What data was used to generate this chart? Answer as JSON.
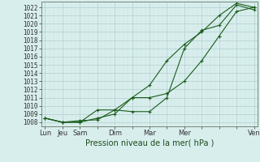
{
  "xlabel": "Pression niveau de la mer( hPa )",
  "ylim": [
    1007.5,
    1022.7
  ],
  "yticks": [
    1008,
    1009,
    1010,
    1011,
    1012,
    1013,
    1014,
    1015,
    1016,
    1017,
    1018,
    1019,
    1020,
    1021,
    1022
  ],
  "bg_color": "#d8eeed",
  "grid_major_color": "#b0cece",
  "grid_minor_color": "#c8e0e0",
  "line_color": "#1a5c1a",
  "series1_x": [
    0,
    1,
    2,
    3,
    4,
    5,
    6,
    7,
    8,
    9,
    10,
    11,
    12
  ],
  "series1_y": [
    1008.5,
    1008.0,
    1008.0,
    1008.5,
    1009.0,
    1011.0,
    1012.5,
    1015.5,
    1017.5,
    1019.0,
    1021.0,
    1022.5,
    1022.0
  ],
  "series2_x": [
    0,
    1,
    2,
    3,
    4,
    5,
    6,
    7,
    8,
    9,
    10,
    11,
    12
  ],
  "series2_y": [
    1008.5,
    1008.0,
    1008.2,
    1008.3,
    1009.5,
    1011.0,
    1011.0,
    1011.5,
    1013.0,
    1015.5,
    1018.5,
    1021.5,
    1022.0
  ],
  "series3_x": [
    0,
    1,
    2,
    3,
    4,
    5,
    6,
    7,
    8,
    9,
    10,
    11,
    12
  ],
  "series3_y": [
    1008.5,
    1008.0,
    1008.0,
    1009.5,
    1009.5,
    1009.3,
    1009.3,
    1011.0,
    1017.0,
    1019.2,
    1019.8,
    1022.3,
    1021.7
  ],
  "xlim": [
    -0.2,
    12.2
  ],
  "xlabel_fontsize": 7,
  "ytick_fontsize": 5.5,
  "xtick_fontsize": 6,
  "linewidth": 0.8,
  "markersize": 3.5,
  "markeredgewidth": 0.8
}
